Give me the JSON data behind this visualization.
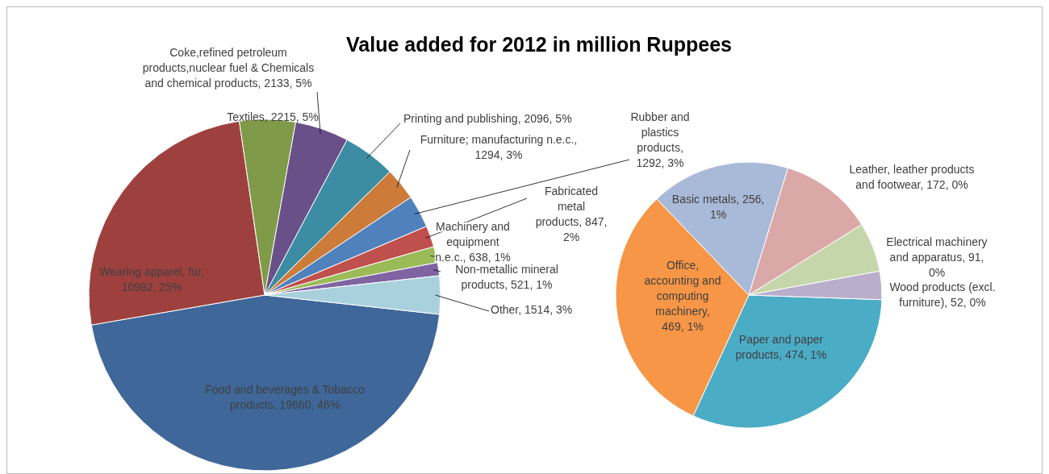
{
  "chart_data": [
    {
      "type": "pie",
      "title": "Value added for 2012 in million Ruppees",
      "categories": [
        "Food and beverages & Tobacco products",
        "Wearing apparel, fur",
        "Textiles",
        "Coke,refined petroleum products,nuclear fuel & Chemicals and chemical products",
        "Printing and publishing",
        "Furniture; manufacturing n.e.c.",
        "Rubber and plastics products",
        "Fabricated metal products",
        "Machinery and equipment n.e.c.",
        "Non-metallic mineral products",
        "Other"
      ],
      "values": [
        19660,
        10982,
        2215,
        2133,
        2096,
        1294,
        1292,
        847,
        638,
        521,
        1514
      ],
      "colors": [
        "#3f6799",
        "#9e413e",
        "#7f9a48",
        "#695089",
        "#3c8da3",
        "#cc7b38",
        "#4f81bd",
        "#c0504d",
        "#9bbb59",
        "#8064a2",
        "#a9d1dd"
      ],
      "value_labels": [
        ", 19660, 46%",
        ", 10982, 25%",
        ", 2215, 5%",
        ", 2133, 5%",
        ", 2096, 5%",
        ", 1294, 3%",
        ", 1292, 3%",
        ", 847, 2%",
        ", 638, 1%",
        ", 521, 1%",
        ", 1514, 3%"
      ]
    },
    {
      "type": "pie",
      "categories": [
        "Paper and paper products",
        "Office, accounting and computing machinery",
        "Basic metals",
        "Leather, leather products and footwear",
        "Electrical machinery and apparatus",
        "Wood products (excl. furniture)"
      ],
      "values": [
        474,
        469,
        256,
        172,
        91,
        52
      ],
      "colors": [
        "#4bacc6",
        "#f79646",
        "#a9b9d8",
        "#dba8a8",
        "#c6d6ab",
        "#b9aecb"
      ],
      "value_labels": [
        ", 474, 1%",
        ", 469, 1%",
        ", 256, 1%",
        ", 172, 0%",
        ", 91, 0%",
        ", 52, 0%"
      ]
    }
  ]
}
